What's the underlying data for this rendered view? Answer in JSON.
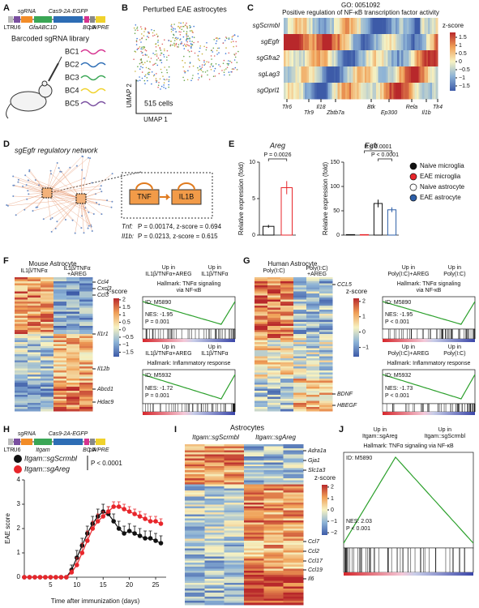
{
  "panels": [
    "A",
    "B",
    "C",
    "D",
    "E",
    "F",
    "G",
    "H",
    "I",
    "J"
  ],
  "A": {
    "construct": [
      "LTR",
      "U6",
      "sgRNA",
      "GfaABC1D",
      "Cas9-2A-EGFP",
      "BC",
      "pA",
      "WPRE"
    ],
    "title": "Barcoded sgRNA library",
    "barcodes": [
      "BC1",
      "BC2",
      "BC3",
      "BC4",
      "BC5"
    ]
  },
  "B": {
    "title": "Perturbed EAE astrocytes",
    "xlabel": "UMAP 1",
    "ylabel": "UMAP 2",
    "count": "515 cells"
  },
  "C": {
    "title": [
      "GO: 0051092",
      "Positive regulation of NF-κB transcription factor activity"
    ],
    "rows": [
      "sgScrmbl",
      "sgEgfr",
      "sgGfra2",
      "sgLag3",
      "sgOprl1"
    ],
    "genes": [
      "Tlr6",
      "Tlr9",
      "Il18",
      "Zbtb7a",
      "Btk",
      "Ep300",
      "Rela",
      "Il1b",
      "Tlr4"
    ],
    "colorbar": {
      "title": "z-score",
      "lim": [
        -1.8,
        1.8
      ],
      "ticks": [
        1.5,
        1,
        0.5,
        0,
        {
          "value": -0.5,
          "label": "−0.5"
        },
        {
          "value": -1,
          "label": "−1"
        },
        {
          "value": -1.5,
          "label": "−1.5"
        }
      ]
    }
  },
  "D": {
    "title": "sgEgfr regulatory network",
    "nodes": [
      "TNF",
      "IL1B"
    ],
    "stats": [
      [
        "Tnf:",
        "P = 0.00174, z-score = 0.694"
      ],
      [
        "Il1b:",
        "P = 0.0213, z-score = 0.615"
      ]
    ]
  },
  "E": {
    "ylabel": "Relative expression (fold)",
    "legend": [
      {
        "name": "Naive microglia",
        "color": "#111111"
      },
      {
        "name": "EAE microglia",
        "color": "#e8262b"
      },
      {
        "name": "Naive astrocyte",
        "color": "#ffffff"
      },
      {
        "name": "EAE astrocyte",
        "color": "#2d5fa8"
      }
    ],
    "charts": [
      {
        "type": "bar",
        "title": "Areg",
        "ylim": [
          0,
          10
        ],
        "yticks": [
          0,
          5,
          10
        ],
        "values": [
          1.2,
          6.5
        ],
        "errors": [
          0.2,
          0.9
        ],
        "colors": [
          "#111111",
          "#e8262b"
        ],
        "pvalues": [
          "P = 0.0026"
        ]
      },
      {
        "type": "bar",
        "title": "Egfr",
        "ylim": [
          0,
          150
        ],
        "yticks": [
          0,
          50,
          100,
          150
        ],
        "values": [
          1,
          1,
          65,
          52
        ],
        "errors": [
          0.3,
          0.3,
          8,
          5
        ],
        "colors": [
          "#111111",
          "#e8262b",
          "#111111",
          "#2d5fa8"
        ],
        "pvalues": [
          "P < 0.0001",
          "P < 0.0001"
        ]
      }
    ]
  },
  "F": {
    "title": "Mouse Astrocyte",
    "conditions": [
      [
        "IL1β/TNFα"
      ],
      [
        "IL1β/TNFα",
        "+AREG"
      ]
    ],
    "genes": [
      "Ccl4",
      "Cxcl3",
      "Ccl3",
      "Il1r1",
      "Il12b",
      "Abcd1",
      "Hdac9"
    ],
    "colorbar": {
      "title": "z-score",
      "lim": [
        -1.8,
        2.1
      ],
      "ticks": [
        2,
        1.5,
        1,
        0.5,
        0,
        {
          "value": -0.5,
          "label": "−0.5"
        },
        {
          "value": -1,
          "label": "−1"
        },
        {
          "value": -1.5,
          "label": "−1.5"
        }
      ]
    },
    "gsea": [
      {
        "up": [
          [
            "Up in",
            "IL1β/TNFα+AREG"
          ],
          [
            "Up in",
            "IL1β/TNFα"
          ]
        ],
        "hallmark": [
          "Hallmark: TNFα signaling",
          "via NF-κB"
        ],
        "id": "ID: M5890",
        "nes": "NES: -1.95",
        "p": "P = 0.001"
      },
      {
        "up": [
          [
            "Up in",
            "IL1β/TNFα+AREG"
          ],
          [
            "Up in",
            "IL1β/TNFα"
          ]
        ],
        "hallmark": [
          "Hallmark: Inflammatory response"
        ],
        "id": "ID: M5932",
        "nes": "NES: -1.72",
        "p": "P = 0.001"
      }
    ]
  },
  "G": {
    "title": "Human Astrocyte",
    "conditions": [
      [
        "Poly(I:C)"
      ],
      [
        "Poly(I:C)",
        "+AREG"
      ]
    ],
    "genes": [
      "CCL5",
      "BDNF",
      "HBEGF"
    ],
    "colorbar": {
      "title": "z-score",
      "lim": [
        -1.6,
        2.2
      ],
      "ticks": [
        2,
        1,
        0,
        {
          "value": -1,
          "label": "−1"
        }
      ]
    },
    "gsea": [
      {
        "up": [
          [
            "Up in",
            "Poly(I:C)+AREG"
          ],
          [
            "Up in",
            "Poly(I:C)"
          ]
        ],
        "hallmark": [
          "Hallmark: TNFα signaling",
          "via NF-κB"
        ],
        "id": "ID: M5890",
        "nes": "NES: -1.95",
        "p": "P < 0.001"
      },
      {
        "up": [
          [
            "Up in",
            "Poly(I:C)+AREG"
          ],
          [
            "Up in",
            "Poly(I:C)"
          ]
        ],
        "hallmark": [
          "Hallmark: Inflammatory response"
        ],
        "id": "ID: M5932",
        "nes": "NES: -1.73",
        "p": "P < 0.001"
      }
    ]
  },
  "H": {
    "construct": [
      "LTR",
      "U6",
      "sgRNA",
      "Itgam",
      "Cas9-2A-EGFP",
      "BC",
      "pA",
      "WPRE"
    ],
    "pvalue": "P < 0.0001",
    "chart": {
      "type": "line",
      "xlabel": "Time after immunization (days)",
      "ylabel": "EAE score",
      "xlim": [
        0,
        27
      ],
      "xticks": [
        5,
        10,
        15,
        20,
        25
      ],
      "ylim": [
        0,
        4
      ],
      "yticks": [
        0,
        1,
        2,
        3,
        4
      ],
      "x": [
        0,
        1,
        2,
        3,
        4,
        5,
        6,
        7,
        8,
        9,
        10,
        11,
        12,
        13,
        14,
        15,
        16,
        17,
        18,
        19,
        20,
        21,
        22,
        23,
        24,
        25,
        26
      ],
      "series": [
        {
          "name": "Itgam::sgScrmbl",
          "color": "#111111",
          "values": [
            0,
            0,
            0,
            0,
            0,
            0,
            0,
            0,
            0,
            0.3,
            0.8,
            1.3,
            1.8,
            2.2,
            2.5,
            2.7,
            2.6,
            2.3,
            2.0,
            1.8,
            1.9,
            1.8,
            1.7,
            1.6,
            1.6,
            1.5,
            1.4
          ],
          "errors": [
            0,
            0,
            0,
            0,
            0,
            0,
            0,
            0,
            0,
            0.2,
            0.3,
            0.3,
            0.3,
            0.3,
            0.3,
            0.3,
            0.3,
            0.3,
            0.3,
            0.3,
            0.3,
            0.3,
            0.3,
            0.3,
            0.3,
            0.3,
            0.3
          ]
        },
        {
          "name": "Itgam::sgAreg",
          "color": "#e8262b",
          "values": [
            0,
            0,
            0,
            0,
            0,
            0,
            0,
            0,
            0,
            0.2,
            0.5,
            1.0,
            1.5,
            2.0,
            2.3,
            2.5,
            2.7,
            2.9,
            2.9,
            2.8,
            2.7,
            2.6,
            2.5,
            2.4,
            2.3,
            2.3,
            2.2
          ],
          "errors": [
            0,
            0,
            0,
            0,
            0,
            0,
            0,
            0,
            0,
            0.1,
            0.3,
            0.4,
            0.4,
            0.3,
            0.3,
            0.2,
            0.2,
            0.2,
            0.2,
            0.2,
            0.2,
            0.2,
            0.2,
            0.2,
            0.2,
            0.2,
            0.2
          ]
        }
      ]
    }
  },
  "I": {
    "title": "Astrocytes",
    "conditions": [
      "Itgam::sgScrmbl",
      "Itgam::sgAreg"
    ],
    "genes": [
      "Adra1a",
      "Gja1",
      "Slc1a3",
      "Ccl7",
      "Ccl2",
      "Ccl17",
      "Ccl19",
      "Il6"
    ],
    "colorbar": {
      "title": "z-score",
      "lim": [
        -2.2,
        2.2
      ],
      "ticks": [
        2,
        1,
        0,
        {
          "value": -1,
          "label": "−1"
        },
        {
          "value": -2,
          "label": "−2"
        }
      ]
    }
  },
  "J": {
    "up": [
      [
        "Up in",
        "Itgam::sgAreg"
      ],
      [
        "Up in",
        "Itgam::sgScrmbl"
      ]
    ],
    "hallmark": [
      "Hallmark: TNFα signaling via NF-κB"
    ],
    "id": "ID: M5890",
    "nes": "NES: 2.03",
    "p": "P < 0.001"
  }
}
